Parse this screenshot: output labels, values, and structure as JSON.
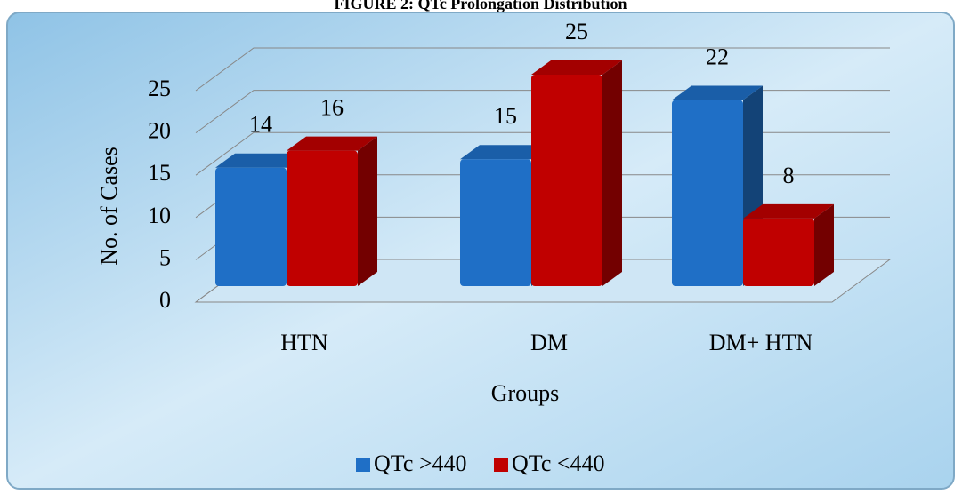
{
  "chart_data": {
    "type": "bar3d",
    "title": "FIGURE 2: QTc Prolongation Distribution",
    "x_label": "Groups",
    "y_label": "No. of Cases",
    "categories": [
      "HTN",
      "DM",
      "DM+ HTN"
    ],
    "series": [
      {
        "name": "QTc >440",
        "color": "#1f6fc6",
        "values": [
          14,
          15,
          22
        ]
      },
      {
        "name": "QTc <440",
        "color": "#c00000",
        "values": [
          16,
          25,
          8
        ]
      }
    ],
    "ylim": [
      0,
      25
    ],
    "yticks": [
      0,
      5,
      10,
      15,
      20,
      25
    ],
    "grid": true,
    "legend": "bottom"
  }
}
